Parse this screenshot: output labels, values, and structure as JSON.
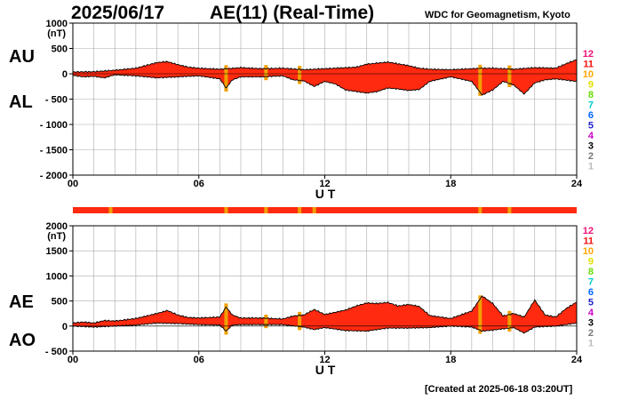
{
  "header": {
    "date": "2025/06/17",
    "title": "AE(11) (Real-Time)",
    "organization": "WDC for Geomagnetism, Kyoto",
    "created": "[Created at 2025-06-18 03:20UT]"
  },
  "colors": {
    "fill": "#ff2a10",
    "flag_fill": "#ff2a10",
    "flag_marker": "#f0a000"
  },
  "station_legend": [
    {
      "label": "12",
      "color": "#ee1177"
    },
    {
      "label": "11",
      "color": "#ee1111"
    },
    {
      "label": "10",
      "color": "#ffa500"
    },
    {
      "label": "9",
      "color": "#e0e000"
    },
    {
      "label": "8",
      "color": "#66dd00"
    },
    {
      "label": "7",
      "color": "#00cccc"
    },
    {
      "label": "6",
      "color": "#0066ff"
    },
    {
      "label": "5",
      "color": "#2222cc"
    },
    {
      "label": "4",
      "color": "#cc00cc"
    },
    {
      "label": "3",
      "color": "#000000"
    },
    {
      "label": "2",
      "color": "#777777"
    },
    {
      "label": "1",
      "color": "#bbbbbb"
    }
  ],
  "chart_data": [
    {
      "type": "area",
      "name": "AU-AL",
      "label_upper": "AU",
      "label_lower": "AL",
      "ylabel": "(nT)",
      "xlabel": "U T",
      "ylim": [
        -2000,
        1000
      ],
      "yticks": [
        1000,
        500,
        0,
        -500,
        -1000,
        -1500,
        -2000
      ],
      "ytick_labels": [
        "1000",
        "500",
        "0",
        "- 500",
        "- 1000",
        "- 1500",
        "- 2000"
      ],
      "xlim": [
        0,
        24
      ],
      "xticks": [
        0,
        6,
        12,
        18,
        24
      ],
      "xtick_labels": [
        "00",
        "06",
        "12",
        "18",
        "24"
      ],
      "upper": {
        "name": "AU",
        "x": [
          0,
          1,
          2,
          3,
          4,
          4.5,
          5,
          5.5,
          6,
          7,
          7.3,
          8,
          9,
          10,
          11,
          11.5,
          12,
          13,
          13.5,
          14,
          15,
          16,
          16.5,
          17,
          18,
          19,
          19.5,
          20,
          21,
          22,
          23,
          23.5,
          24
        ],
        "values": [
          35,
          40,
          70,
          110,
          220,
          240,
          180,
          130,
          110,
          90,
          100,
          120,
          100,
          110,
          80,
          90,
          100,
          120,
          130,
          190,
          230,
          160,
          110,
          90,
          80,
          100,
          110,
          110,
          90,
          120,
          110,
          200,
          280
        ]
      },
      "lower": {
        "name": "AL",
        "x": [
          0,
          0.5,
          1,
          1.5,
          2,
          3,
          4,
          5,
          6,
          7,
          7.3,
          7.6,
          8,
          9,
          10,
          10.5,
          11,
          11.5,
          12,
          12.5,
          13,
          14,
          14.5,
          15,
          15.5,
          16,
          16.5,
          17,
          18,
          19,
          19.5,
          20,
          20.5,
          21,
          21.5,
          22,
          22.5,
          23,
          24
        ],
        "values": [
          -30,
          -60,
          -50,
          -80,
          -20,
          -40,
          -80,
          -60,
          -40,
          -100,
          -280,
          -120,
          -60,
          -60,
          -40,
          -120,
          -140,
          -250,
          -150,
          -200,
          -320,
          -380,
          -350,
          -280,
          -300,
          -330,
          -310,
          -150,
          -60,
          -150,
          -420,
          -320,
          -150,
          -220,
          -400,
          -180,
          -120,
          -100,
          -150
        ]
      },
      "flag_markers_x": [
        7.3,
        9.2,
        10.8,
        19.4,
        20.8
      ]
    },
    {
      "type": "area",
      "name": "AE-AO",
      "label_upper": "AE",
      "label_lower": "AO",
      "ylabel": "(nT)",
      "xlabel": "U T",
      "ylim": [
        -500,
        2000
      ],
      "yticks": [
        2000,
        1500,
        1000,
        500,
        0,
        -500
      ],
      "ytick_labels": [
        "2000",
        "1500",
        "1000",
        "500",
        "0",
        "- 500"
      ],
      "xlim": [
        0,
        24
      ],
      "xticks": [
        0,
        6,
        12,
        18,
        24
      ],
      "xtick_labels": [
        "00",
        "06",
        "12",
        "18",
        "24"
      ],
      "upper": {
        "name": "AE",
        "x": [
          0,
          0.5,
          1,
          1.5,
          2,
          3,
          4,
          4.5,
          5,
          5.5,
          6,
          7,
          7.3,
          7.6,
          8,
          9,
          10,
          10.5,
          11,
          11.5,
          12,
          13,
          13.5,
          14,
          14.5,
          15,
          15.5,
          16,
          16.5,
          17,
          18,
          19,
          19.5,
          20,
          20.5,
          21,
          21.5,
          22,
          22.5,
          23,
          23.5,
          24
        ],
        "values": [
          60,
          80,
          60,
          110,
          100,
          150,
          250,
          310,
          220,
          170,
          160,
          180,
          380,
          220,
          160,
          160,
          140,
          200,
          220,
          330,
          230,
          320,
          400,
          460,
          450,
          470,
          400,
          430,
          390,
          210,
          150,
          300,
          600,
          450,
          200,
          250,
          180,
          520,
          220,
          180,
          350,
          480
        ]
      },
      "lower": {
        "name": "AO",
        "x": [
          0,
          1,
          2,
          3,
          4,
          5,
          6,
          7,
          7.3,
          7.6,
          8,
          9,
          10,
          11,
          11.5,
          12,
          13,
          14,
          15,
          16,
          17,
          18,
          19,
          19.5,
          20,
          21,
          21.5,
          22,
          23,
          24
        ],
        "values": [
          0,
          -20,
          0,
          20,
          60,
          50,
          30,
          20,
          -100,
          20,
          30,
          30,
          30,
          -20,
          -70,
          -30,
          -90,
          -100,
          -40,
          -40,
          -30,
          0,
          -20,
          -100,
          -80,
          -30,
          -140,
          -20,
          0,
          60
        ]
      },
      "flag_markers_x": [
        7.3,
        9.2,
        10.8,
        19.4,
        20.8
      ]
    }
  ],
  "quality_bar": {
    "markers_x": [
      1.8,
      7.3,
      9.2,
      10.8,
      11.5,
      19.4,
      20.8
    ]
  }
}
